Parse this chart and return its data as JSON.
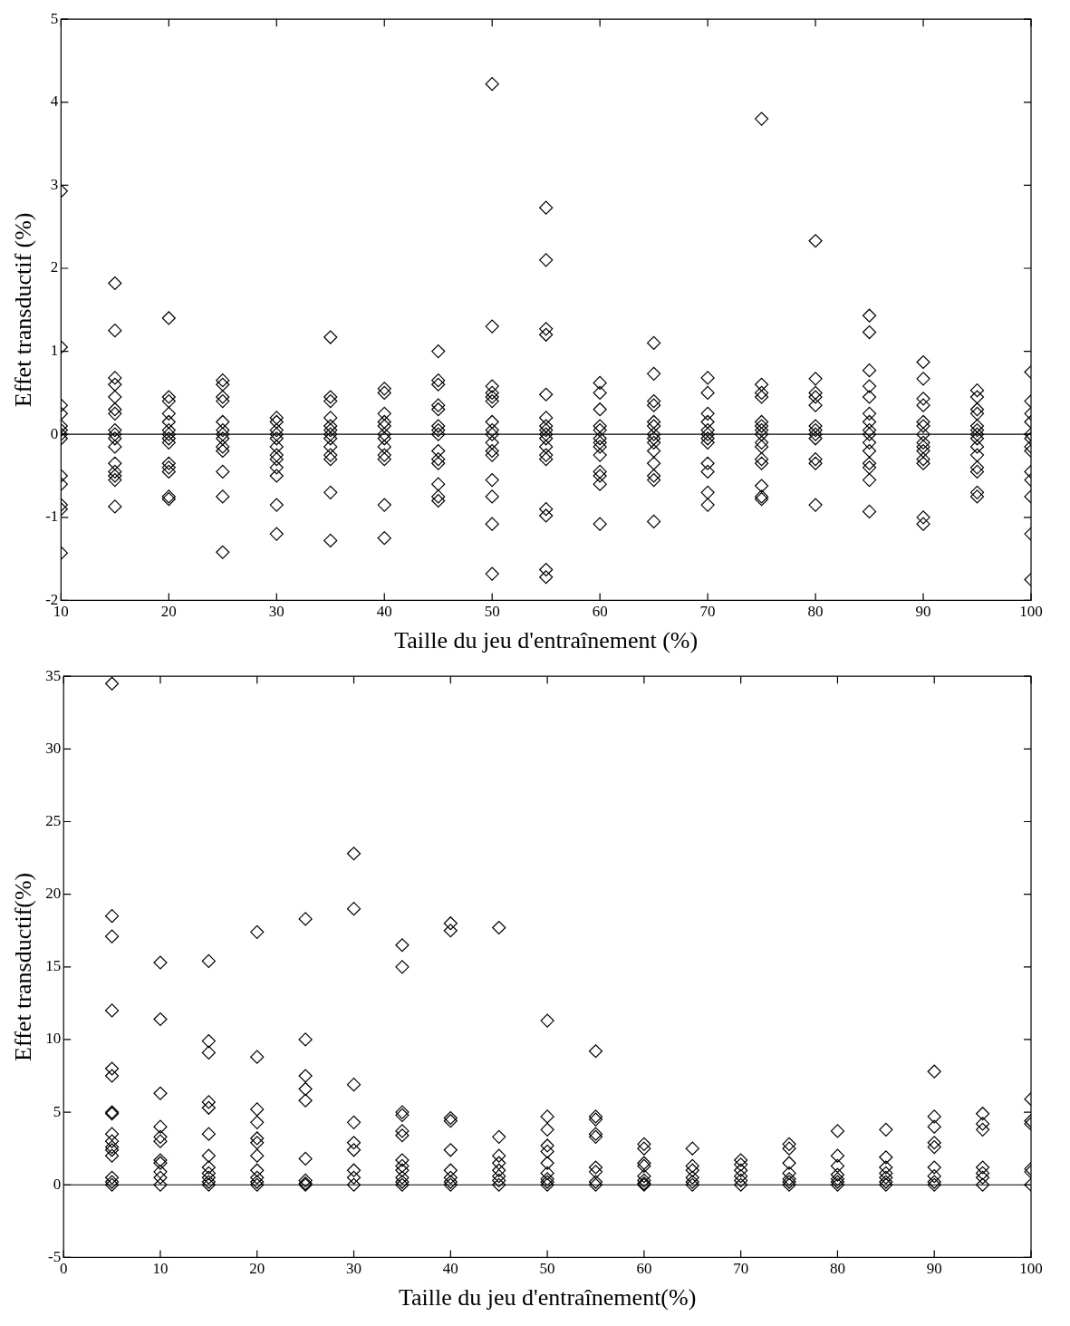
{
  "chart_data": [
    {
      "type": "scatter",
      "xlabel": "Taille du jeu d'entraînement (%)",
      "ylabel": "Effet transductif (%)",
      "xlim": [
        10,
        100
      ],
      "xticks": [
        10,
        20,
        30,
        40,
        50,
        60,
        70,
        80,
        90,
        100
      ],
      "ylim": [
        -2,
        5
      ],
      "yticks": [
        -2,
        -1,
        0,
        1,
        2,
        3,
        4,
        5
      ],
      "grid": false,
      "legend": false,
      "marker": "diamond",
      "ref_lines": [
        {
          "axis": "y",
          "value": 0,
          "color": "#000000"
        }
      ],
      "series": [
        {
          "color": "#000000",
          "x": [
            10,
            10,
            10,
            10,
            10,
            10,
            10,
            10,
            10,
            10,
            10,
            10,
            10
          ],
          "values": [
            2.93,
            1.05,
            0.35,
            0.25,
            0.1,
            0.05,
            0,
            -0.05,
            -0.5,
            -0.6,
            -0.85,
            -0.9,
            -1.43
          ]
        },
        {
          "color": "#000000",
          "x": [
            15,
            15,
            15,
            15,
            15,
            15,
            15,
            15,
            15,
            15,
            15,
            15,
            15,
            15,
            15,
            15
          ],
          "values": [
            1.82,
            1.25,
            0.68,
            0.6,
            0.45,
            0.3,
            0.25,
            0.05,
            0,
            -0.05,
            -0.15,
            -0.35,
            -0.45,
            -0.5,
            -0.55,
            -0.87
          ]
        },
        {
          "color": "#000000",
          "x": [
            20,
            20,
            20,
            20,
            20,
            20,
            20,
            20,
            20,
            20,
            20,
            20,
            20,
            20
          ],
          "values": [
            1.4,
            0.45,
            0.4,
            0.25,
            0.15,
            0.05,
            0,
            -0.05,
            -0.1,
            -0.35,
            -0.4,
            -0.45,
            -0.75,
            -0.78
          ]
        },
        {
          "color": "#000000",
          "x": [
            25,
            25,
            25,
            25,
            25,
            25,
            25,
            25,
            25,
            25,
            25,
            25,
            25
          ],
          "values": [
            0.65,
            0.6,
            0.45,
            0.4,
            0.15,
            0.05,
            0,
            -0.05,
            -0.15,
            -0.2,
            -0.45,
            -0.75,
            -1.42
          ]
        },
        {
          "color": "#000000",
          "x": [
            30,
            30,
            30,
            30,
            30,
            30,
            30,
            30,
            30,
            30,
            30,
            30
          ],
          "values": [
            0.2,
            0.15,
            0.05,
            0,
            -0.05,
            -0.15,
            -0.25,
            -0.3,
            -0.4,
            -0.5,
            -0.85,
            -1.2
          ]
        },
        {
          "color": "#000000",
          "x": [
            35,
            35,
            35,
            35,
            35,
            35,
            35,
            35,
            35,
            35,
            35,
            35,
            35
          ],
          "values": [
            1.17,
            0.45,
            0.4,
            0.2,
            0.1,
            0.05,
            0,
            -0.05,
            -0.15,
            -0.25,
            -0.3,
            -0.7,
            -1.28
          ]
        },
        {
          "color": "#000000",
          "x": [
            40,
            40,
            40,
            40,
            40,
            40,
            40,
            40,
            40,
            40,
            40,
            40
          ],
          "values": [
            0.55,
            0.5,
            0.25,
            0.15,
            0.1,
            0,
            -0.05,
            -0.15,
            -0.25,
            -0.3,
            -0.85,
            -1.25
          ]
        },
        {
          "color": "#000000",
          "x": [
            45,
            45,
            45,
            45,
            45,
            45,
            45,
            45,
            45,
            45,
            45,
            45,
            45,
            45
          ],
          "values": [
            1.0,
            0.65,
            0.6,
            0.35,
            0.3,
            0.1,
            0.05,
            0,
            -0.2,
            -0.3,
            -0.35,
            -0.6,
            -0.75,
            -0.8
          ]
        },
        {
          "color": "#000000",
          "x": [
            50,
            50,
            50,
            50,
            50,
            50,
            50,
            50,
            50,
            50,
            50,
            50,
            50,
            50,
            50,
            50
          ],
          "values": [
            4.22,
            1.3,
            0.58,
            0.5,
            0.45,
            0.4,
            0.15,
            0.05,
            0,
            -0.1,
            -0.2,
            -0.25,
            -0.55,
            -0.75,
            -1.08,
            -1.68
          ]
        },
        {
          "color": "#000000",
          "x": [
            55,
            55,
            55,
            55,
            55,
            55,
            55,
            55,
            55,
            55,
            55,
            55,
            55,
            55,
            55,
            55,
            55
          ],
          "values": [
            2.73,
            2.1,
            1.27,
            1.2,
            0.48,
            0.2,
            0.1,
            0.05,
            0,
            -0.05,
            -0.15,
            -0.25,
            -0.3,
            -0.9,
            -0.98,
            -1.63,
            -1.72
          ]
        },
        {
          "color": "#000000",
          "x": [
            60,
            60,
            60,
            60,
            60,
            60,
            60,
            60,
            60,
            60,
            60,
            60,
            60
          ],
          "values": [
            0.62,
            0.5,
            0.3,
            0.1,
            0.05,
            -0.05,
            -0.1,
            -0.15,
            -0.25,
            -0.45,
            -0.5,
            -0.6,
            -1.08
          ]
        },
        {
          "color": "#000000",
          "x": [
            65,
            65,
            65,
            65,
            65,
            65,
            65,
            65,
            65,
            65,
            65,
            65,
            65,
            65
          ],
          "values": [
            1.1,
            0.73,
            0.4,
            0.35,
            0.15,
            0.1,
            0,
            -0.05,
            -0.1,
            -0.2,
            -0.35,
            -0.5,
            -0.55,
            -1.05
          ]
        },
        {
          "color": "#000000",
          "x": [
            70,
            70,
            70,
            70,
            70,
            70,
            70,
            70,
            70,
            70,
            70,
            70
          ],
          "values": [
            0.68,
            0.5,
            0.25,
            0.15,
            0.05,
            0,
            -0.05,
            -0.1,
            -0.35,
            -0.45,
            -0.7,
            -0.85
          ]
        },
        {
          "color": "#000000",
          "x": [
            75,
            75,
            75,
            75,
            75,
            75,
            75,
            75,
            75,
            75,
            75,
            75,
            75,
            75,
            75
          ],
          "values": [
            3.8,
            0.6,
            0.5,
            0.45,
            0.15,
            0.1,
            0.05,
            0,
            -0.1,
            -0.15,
            -0.3,
            -0.35,
            -0.62,
            -0.75,
            -0.78
          ]
        },
        {
          "color": "#000000",
          "x": [
            80,
            80,
            80,
            80,
            80,
            80,
            80,
            80,
            80,
            80,
            80,
            80
          ],
          "values": [
            2.33,
            0.67,
            0.5,
            0.45,
            0.35,
            0.1,
            0.05,
            0,
            -0.05,
            -0.3,
            -0.35,
            -0.85
          ]
        },
        {
          "color": "#000000",
          "x": [
            85,
            85,
            85,
            85,
            85,
            85,
            85,
            85,
            85,
            85,
            85,
            85,
            85,
            85,
            85
          ],
          "values": [
            1.43,
            1.23,
            0.77,
            0.58,
            0.45,
            0.25,
            0.15,
            0.05,
            0,
            -0.1,
            -0.2,
            -0.35,
            -0.4,
            -0.55,
            -0.93
          ]
        },
        {
          "color": "#000000",
          "x": [
            90,
            90,
            90,
            90,
            90,
            90,
            90,
            90,
            90,
            90,
            90,
            90,
            90,
            90
          ],
          "values": [
            0.87,
            0.67,
            0.43,
            0.35,
            0.15,
            0.1,
            0,
            -0.1,
            -0.15,
            -0.2,
            -0.3,
            -0.35,
            -1.0,
            -1.08
          ]
        },
        {
          "color": "#000000",
          "x": [
            95,
            95,
            95,
            95,
            95,
            95,
            95,
            95,
            95,
            95,
            95,
            95,
            95,
            95
          ],
          "values": [
            0.53,
            0.45,
            0.3,
            0.25,
            0.1,
            0.05,
            0,
            -0.05,
            -0.15,
            -0.25,
            -0.4,
            -0.45,
            -0.7,
            -0.75
          ]
        },
        {
          "color": "#000000",
          "x": [
            100,
            100,
            100,
            100,
            100,
            100,
            100,
            100,
            100,
            100,
            100,
            100,
            100
          ],
          "values": [
            0.75,
            0.4,
            0.25,
            0.15,
            0,
            -0.05,
            -0.15,
            -0.2,
            -0.45,
            -0.55,
            -0.75,
            -1.2,
            -1.75
          ]
        }
      ]
    },
    {
      "type": "scatter",
      "xlabel": "Taille du jeu d'entraînement(%)",
      "ylabel": "Effet transductif(%)",
      "xlim": [
        0,
        100
      ],
      "xticks": [
        0,
        10,
        20,
        30,
        40,
        50,
        60,
        70,
        80,
        90,
        100
      ],
      "ylim": [
        -5,
        35
      ],
      "yticks": [
        -5,
        0,
        5,
        10,
        15,
        20,
        25,
        30,
        35
      ],
      "grid": false,
      "legend": false,
      "marker": "diamond",
      "ref_lines": [
        {
          "axis": "y",
          "value": 0,
          "color": "#000000"
        }
      ],
      "series": [
        {
          "color": "#000000",
          "x": [
            5,
            5,
            5,
            5,
            5,
            5,
            5,
            5,
            5,
            5,
            5,
            5,
            5,
            5,
            5,
            5
          ],
          "values": [
            34.5,
            18.5,
            17.1,
            12,
            8,
            7.5,
            5,
            4.9,
            3.5,
            3,
            2.6,
            2.4,
            2,
            0.5,
            0.2,
            0
          ]
        },
        {
          "color": "#000000",
          "x": [
            10,
            10,
            10,
            10,
            10,
            10,
            10,
            10,
            10,
            10,
            10
          ],
          "values": [
            15.3,
            11.4,
            6.3,
            4,
            3.3,
            3,
            1.7,
            1.5,
            0.9,
            0.5,
            0
          ]
        },
        {
          "color": "#000000",
          "x": [
            15,
            15,
            15,
            15,
            15,
            15,
            15,
            15,
            15,
            15,
            15,
            15
          ],
          "values": [
            15.4,
            9.9,
            9.1,
            5.7,
            5.3,
            3.5,
            2,
            1.2,
            0.8,
            0.5,
            0.2,
            0
          ]
        },
        {
          "color": "#000000",
          "x": [
            20,
            20,
            20,
            20,
            20,
            20,
            20,
            20,
            20,
            20,
            20
          ],
          "values": [
            17.4,
            8.8,
            5.2,
            4.3,
            3.2,
            2.9,
            2,
            1,
            0.5,
            0.2,
            0
          ]
        },
        {
          "color": "#000000",
          "x": [
            25,
            25,
            25,
            25,
            25,
            25,
            25,
            25,
            25
          ],
          "values": [
            18.3,
            10,
            7.5,
            6.6,
            5.8,
            1.8,
            0.3,
            0.1,
            0
          ]
        },
        {
          "color": "#000000",
          "x": [
            30,
            30,
            30,
            30,
            30,
            30,
            30,
            30,
            30
          ],
          "values": [
            22.8,
            19,
            6.9,
            4.3,
            2.9,
            2.4,
            1,
            0.5,
            0
          ]
        },
        {
          "color": "#000000",
          "x": [
            35,
            35,
            35,
            35,
            35,
            35,
            35,
            35,
            35,
            35,
            35,
            35
          ],
          "values": [
            16.5,
            15,
            5,
            4.8,
            3.7,
            3.4,
            1.7,
            1.3,
            1,
            0.5,
            0.2,
            0
          ]
        },
        {
          "color": "#000000",
          "x": [
            40,
            40,
            40,
            40,
            40,
            40,
            40,
            40,
            40
          ],
          "values": [
            18,
            17.5,
            4.6,
            4.4,
            2.4,
            1,
            0.5,
            0.2,
            0
          ]
        },
        {
          "color": "#000000",
          "x": [
            45,
            45,
            45,
            45,
            45,
            45,
            45,
            45
          ],
          "values": [
            17.7,
            3.3,
            2,
            1.5,
            1,
            0.6,
            0.3,
            0
          ]
        },
        {
          "color": "#000000",
          "x": [
            50,
            50,
            50,
            50,
            50,
            50,
            50,
            50,
            50,
            50
          ],
          "values": [
            11.3,
            4.7,
            3.8,
            2.7,
            2.3,
            1.5,
            0.8,
            0.4,
            0.2,
            0
          ]
        },
        {
          "color": "#000000",
          "x": [
            55,
            55,
            55,
            55,
            55,
            55,
            55,
            55,
            55
          ],
          "values": [
            9.2,
            4.7,
            4.5,
            3.5,
            3.3,
            1.2,
            0.9,
            0.2,
            0
          ]
        },
        {
          "color": "#000000",
          "x": [
            60,
            60,
            60,
            60,
            60,
            60,
            60,
            60
          ],
          "values": [
            2.8,
            2.5,
            1.5,
            1.3,
            0.6,
            0.3,
            0.1,
            0
          ]
        },
        {
          "color": "#000000",
          "x": [
            65,
            65,
            65,
            65,
            65,
            65
          ],
          "values": [
            2.5,
            1.3,
            1,
            0.5,
            0.2,
            0
          ]
        },
        {
          "color": "#000000",
          "x": [
            70,
            70,
            70,
            70,
            70,
            70
          ],
          "values": [
            1.7,
            1.4,
            1,
            0.6,
            0.3,
            0
          ]
        },
        {
          "color": "#000000",
          "x": [
            75,
            75,
            75,
            75,
            75,
            75,
            75
          ],
          "values": [
            2.8,
            2.5,
            1.5,
            0.8,
            0.4,
            0.2,
            0
          ]
        },
        {
          "color": "#000000",
          "x": [
            80,
            80,
            80,
            80,
            80,
            80,
            80
          ],
          "values": [
            3.7,
            2,
            1.3,
            0.7,
            0.4,
            0.2,
            0
          ]
        },
        {
          "color": "#000000",
          "x": [
            85,
            85,
            85,
            85,
            85,
            85,
            85
          ],
          "values": [
            3.8,
            1.9,
            1.2,
            0.8,
            0.5,
            0.2,
            0
          ]
        },
        {
          "color": "#000000",
          "x": [
            90,
            90,
            90,
            90,
            90,
            90,
            90,
            90,
            90
          ],
          "values": [
            7.8,
            4.7,
            4,
            2.9,
            2.6,
            1.2,
            0.6,
            0.2,
            0
          ]
        },
        {
          "color": "#000000",
          "x": [
            95,
            95,
            95,
            95,
            95,
            95,
            95
          ],
          "values": [
            4.9,
            4.2,
            3.8,
            1.2,
            0.8,
            0.5,
            0
          ]
        },
        {
          "color": "#000000",
          "x": [
            100,
            100,
            100,
            100,
            100,
            100
          ],
          "values": [
            5.9,
            4.4,
            4.2,
            1.1,
            0.9,
            0
          ]
        }
      ]
    }
  ]
}
